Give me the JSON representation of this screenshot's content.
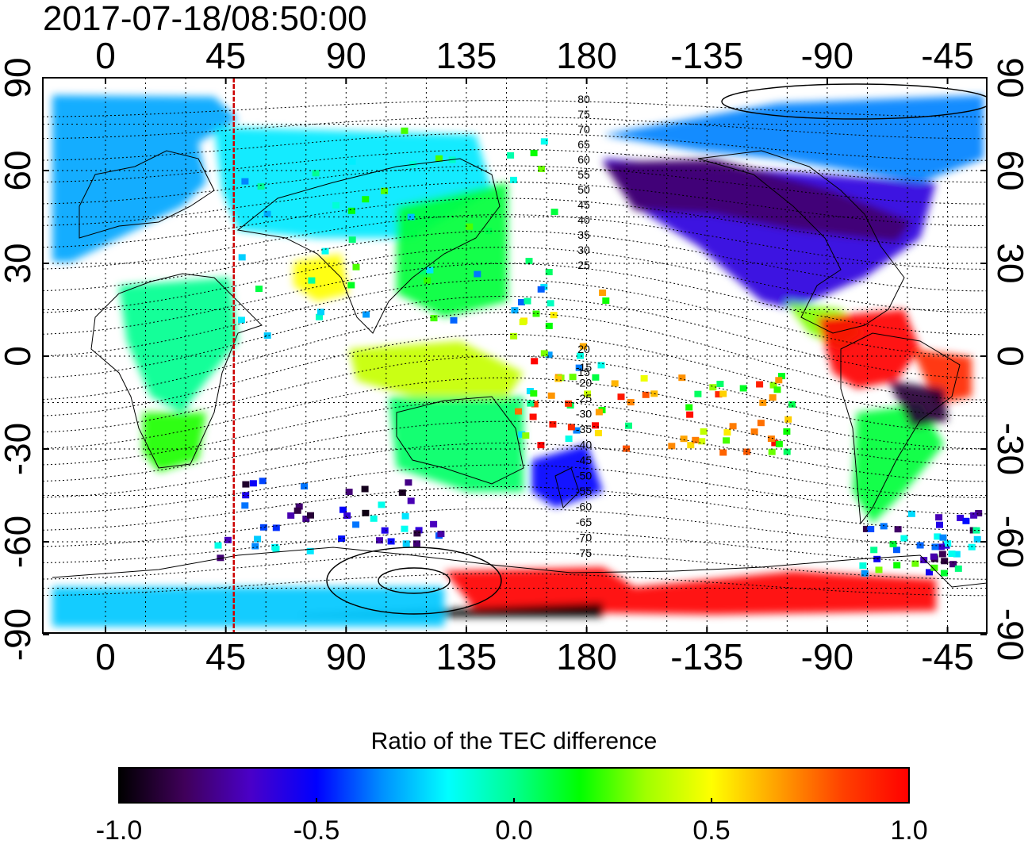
{
  "title": "2017-07-18/08:50:00",
  "colorbar": {
    "label": "Ratio of the TEC difference",
    "tick_labels": [
      "-1.0",
      "-0.5",
      "0.0",
      "0.5",
      "1.0"
    ],
    "range": [
      -1.0,
      1.0
    ],
    "colors": [
      "#000000",
      "#40005a",
      "#4a00c8",
      "#0000ff",
      "#0090ff",
      "#00ffff",
      "#00ff90",
      "#00ff00",
      "#a0ff00",
      "#ffff00",
      "#ffa000",
      "#ff4000",
      "#ff0000"
    ]
  },
  "map": {
    "lon_ticks": [
      "0",
      "45",
      "90",
      "135",
      "180",
      "-135",
      "-90",
      "-45"
    ],
    "lat_ticks": [
      "90",
      "60",
      "30",
      "0",
      "-30",
      "-60",
      "-90"
    ],
    "contour_labels_north": [
      "80",
      "75",
      "70",
      "65",
      "60",
      "55",
      "50",
      "45",
      "40",
      "35",
      "30",
      "25",
      "20",
      "15"
    ],
    "contour_labels_south": [
      "-15",
      "-20",
      "-25",
      "-30",
      "-35",
      "-40",
      "-45",
      "-50",
      "-55",
      "-60",
      "-65",
      "-70",
      "-75"
    ],
    "marker_longitude": 48,
    "regions": [
      {
        "name": "europe-asia-north",
        "value": -0.3
      },
      {
        "name": "russia",
        "value": -0.2
      },
      {
        "name": "india",
        "value": 0.5
      },
      {
        "name": "africa",
        "value": 0.0
      },
      {
        "name": "southern-africa",
        "value": 0.2
      },
      {
        "name": "china-japan",
        "value": 0.1
      },
      {
        "name": "indonesia",
        "value": 0.4
      },
      {
        "name": "australia",
        "value": 0.05
      },
      {
        "name": "new-zealand",
        "value": -0.5
      },
      {
        "name": "north-america",
        "value": -0.6
      },
      {
        "name": "alaska-canada-band",
        "value": -0.8
      },
      {
        "name": "arctic-canada",
        "value": -0.35
      },
      {
        "name": "central-america",
        "value": 0.3
      },
      {
        "name": "south-america-north",
        "value": 1.0
      },
      {
        "name": "brazil-east",
        "value": 0.9
      },
      {
        "name": "south-america-south",
        "value": 0.1
      },
      {
        "name": "amazon-dark",
        "value": -0.9
      },
      {
        "name": "antarctica-red",
        "value": 1.0
      },
      {
        "name": "antarctica-dark",
        "value": -1.0
      },
      {
        "name": "antarctic-ring",
        "value": -0.25
      }
    ]
  }
}
